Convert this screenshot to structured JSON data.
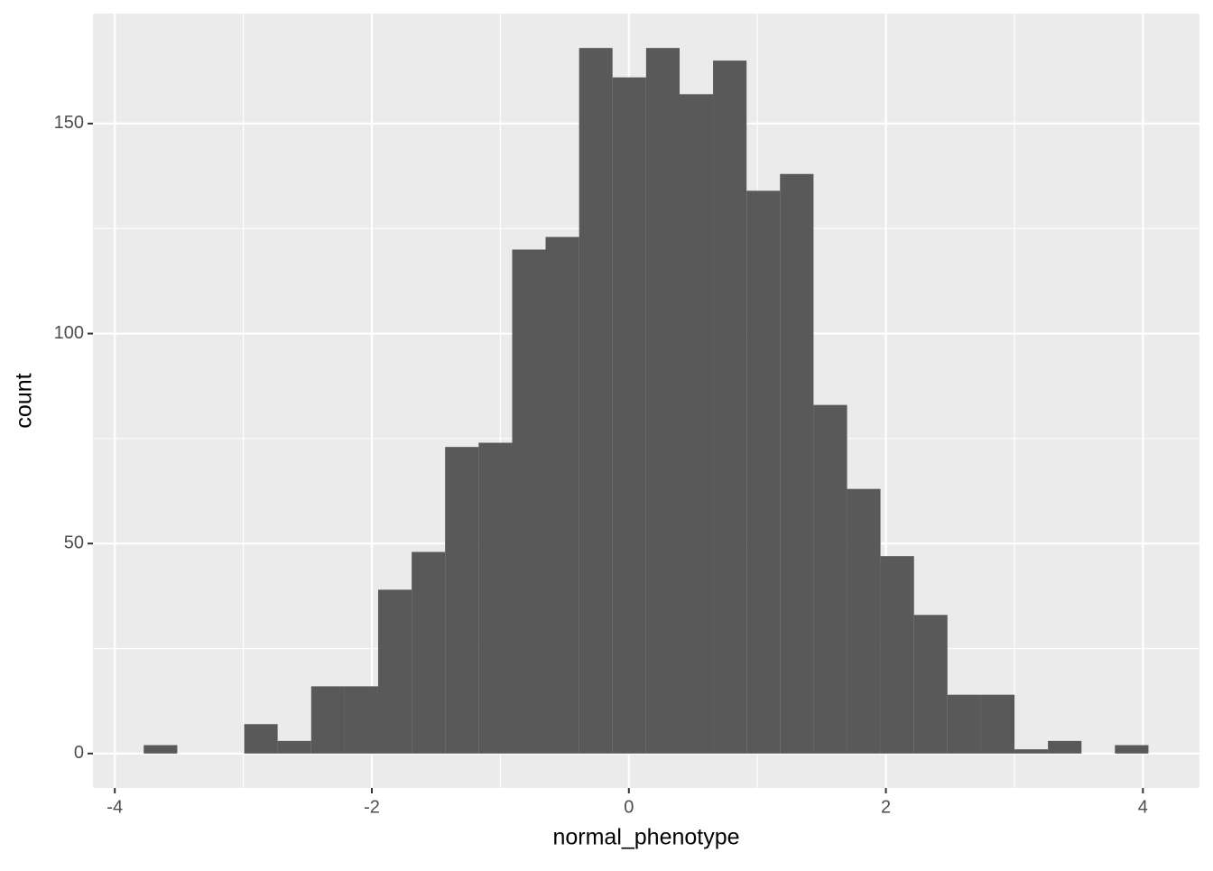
{
  "chart_data": {
    "type": "histogram",
    "x_label": "normal_phenotype",
    "y_label": "count",
    "bins": [
      -3.775,
      -3.514,
      -3.254,
      -2.993,
      -2.733,
      -2.472,
      -2.211,
      -1.951,
      -1.69,
      -1.43,
      -1.169,
      -0.908,
      -0.648,
      -0.387,
      -0.127,
      0.134,
      0.395,
      0.655,
      0.916,
      1.176,
      1.437,
      1.698,
      1.958,
      2.219,
      2.479,
      2.74,
      3.001,
      3.261,
      3.522,
      3.782,
      4.043
    ],
    "values": [
      2,
      0,
      0,
      7,
      3,
      16,
      16,
      39,
      48,
      73,
      74,
      120,
      123,
      168,
      161,
      168,
      157,
      165,
      134,
      138,
      83,
      63,
      47,
      33,
      14,
      14,
      1,
      3,
      0,
      2
    ],
    "color": "#595959",
    "xlim": [
      -4.17,
      4.44
    ],
    "xticks": [
      -4,
      -2,
      0,
      2,
      4
    ],
    "x_minor_grid": [
      -3,
      -1,
      1,
      3
    ],
    "ylim": [
      -8.2,
      176.2
    ],
    "yticks": [
      0,
      50,
      100,
      150
    ],
    "y_minor_grid": [
      25,
      75,
      125
    ],
    "grid": true
  }
}
